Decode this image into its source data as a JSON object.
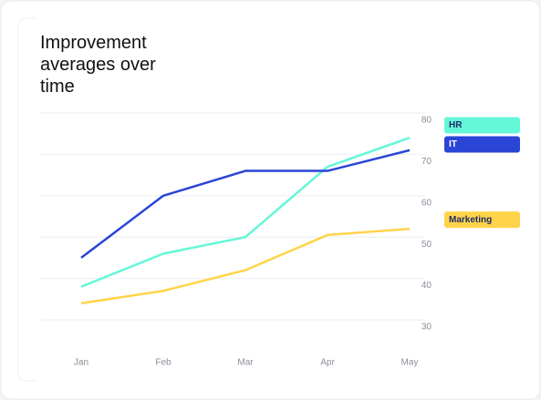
{
  "chart_data": {
    "type": "line",
    "title": "Improvement averages over time",
    "categories": [
      "Jan",
      "Feb",
      "Mar",
      "Apr",
      "May"
    ],
    "series": [
      {
        "name": "HR",
        "color": "#64f7d8",
        "values": [
          38,
          46,
          50,
          67,
          74
        ]
      },
      {
        "name": "IT",
        "color": "#2b45d6",
        "values": [
          45,
          60,
          66,
          66,
          71
        ]
      },
      {
        "name": "Marketing",
        "color": "#ffd44a",
        "values": [
          34,
          37,
          42,
          50.5,
          52
        ]
      }
    ],
    "ylim": [
      30,
      80
    ],
    "yticks": [
      30,
      40,
      50,
      60,
      70,
      80
    ],
    "grid": true
  }
}
